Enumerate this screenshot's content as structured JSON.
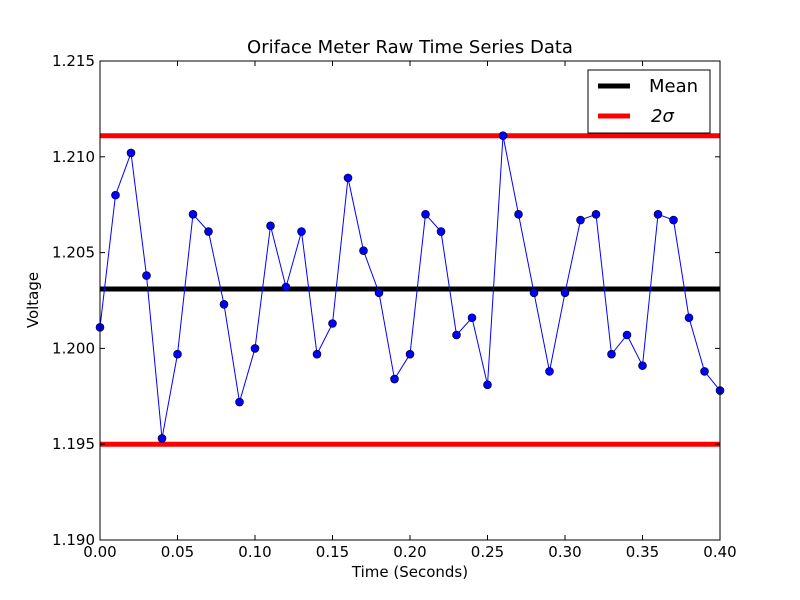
{
  "chart_data": {
    "type": "line",
    "title": "Oriface Meter Raw Time Series Data",
    "xlabel": "Time (Seconds)",
    "ylabel": "Voltage",
    "xlim": [
      0.0,
      0.4
    ],
    "ylim": [
      1.19,
      1.215
    ],
    "xticks": [
      "0.00",
      "0.05",
      "0.10",
      "0.15",
      "0.20",
      "0.25",
      "0.30",
      "0.35",
      "0.40"
    ],
    "yticks": [
      "1.190",
      "1.195",
      "1.200",
      "1.205",
      "1.210",
      "1.215"
    ],
    "grid": false,
    "legend_position": "top-right",
    "series": [
      {
        "color": "#0000ff",
        "marker": "circle",
        "x": [
          0.0,
          0.01,
          0.02,
          0.03,
          0.04,
          0.05,
          0.06,
          0.07,
          0.08,
          0.09,
          0.1,
          0.11,
          0.12,
          0.13,
          0.14,
          0.15,
          0.16,
          0.17,
          0.18,
          0.19,
          0.2,
          0.21,
          0.22,
          0.23,
          0.24,
          0.25,
          0.26,
          0.27,
          0.28,
          0.29,
          0.3,
          0.31,
          0.32,
          0.33,
          0.34,
          0.35,
          0.36,
          0.37,
          0.38,
          0.39,
          0.4
        ],
        "values": [
          1.2011,
          1.208,
          1.2102,
          1.2038,
          1.1953,
          1.1997,
          1.207,
          1.2061,
          1.2023,
          1.1972,
          1.2,
          1.2064,
          1.2032,
          1.2061,
          1.1997,
          1.2013,
          1.2089,
          1.2051,
          1.2029,
          1.1984,
          1.1997,
          1.207,
          1.2061,
          1.2007,
          1.2016,
          1.1981,
          1.2111,
          1.207,
          1.2029,
          1.1988,
          1.2029,
          1.2067,
          1.207,
          1.1997,
          1.2007,
          1.1991,
          1.207,
          1.2067,
          1.2016,
          1.1988,
          1.1978
        ]
      }
    ],
    "hlines": [
      {
        "name": "Mean",
        "value": 1.2031,
        "color": "#000000"
      },
      {
        "name": "2σ",
        "value": 1.2111,
        "color": "#ff0000"
      },
      {
        "value": 1.195,
        "color": "#ff0000"
      }
    ],
    "legend": [
      "Mean",
      "2σ"
    ]
  }
}
